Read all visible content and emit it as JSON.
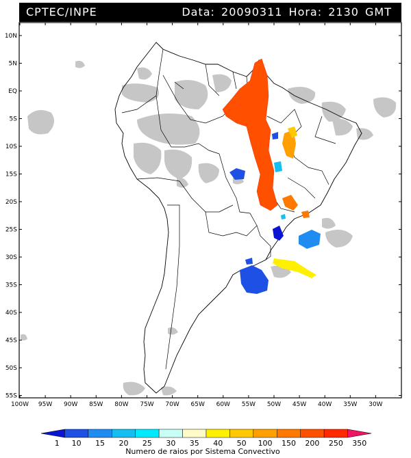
{
  "header": {
    "left": "CPTEC/INPE",
    "right": "Data: 20090311 Hora: 2130 GMT"
  },
  "map": {
    "lat_labels": [
      "10N",
      "5N",
      "EQ",
      "5S",
      "10S",
      "15S",
      "20S",
      "25S",
      "30S",
      "35S",
      "40S",
      "45S",
      "50S",
      "55S"
    ],
    "lon_labels": [
      "100W",
      "95W",
      "90W",
      "85W",
      "80W",
      "75W",
      "70W",
      "65W",
      "60W",
      "55W",
      "50W",
      "45W",
      "40W",
      "35W",
      "30W"
    ],
    "cloud_color": "#c8c8c8",
    "border_color": "#000000"
  },
  "legend": {
    "labels": [
      "1",
      "10",
      "15",
      "20",
      "25",
      "30",
      "35",
      "40",
      "50",
      "100",
      "150",
      "200",
      "250",
      "350"
    ],
    "colors": [
      "#0a14d2",
      "#1e50e6",
      "#1e8cf0",
      "#14bef0",
      "#00eaff",
      "#c8fff5",
      "#fffcc8",
      "#fff000",
      "#ffc800",
      "#ffa000",
      "#ff7800",
      "#ff5000",
      "#ff2800",
      "#f01464"
    ],
    "title": "Numero de raios por Sistema Convectivo"
  }
}
